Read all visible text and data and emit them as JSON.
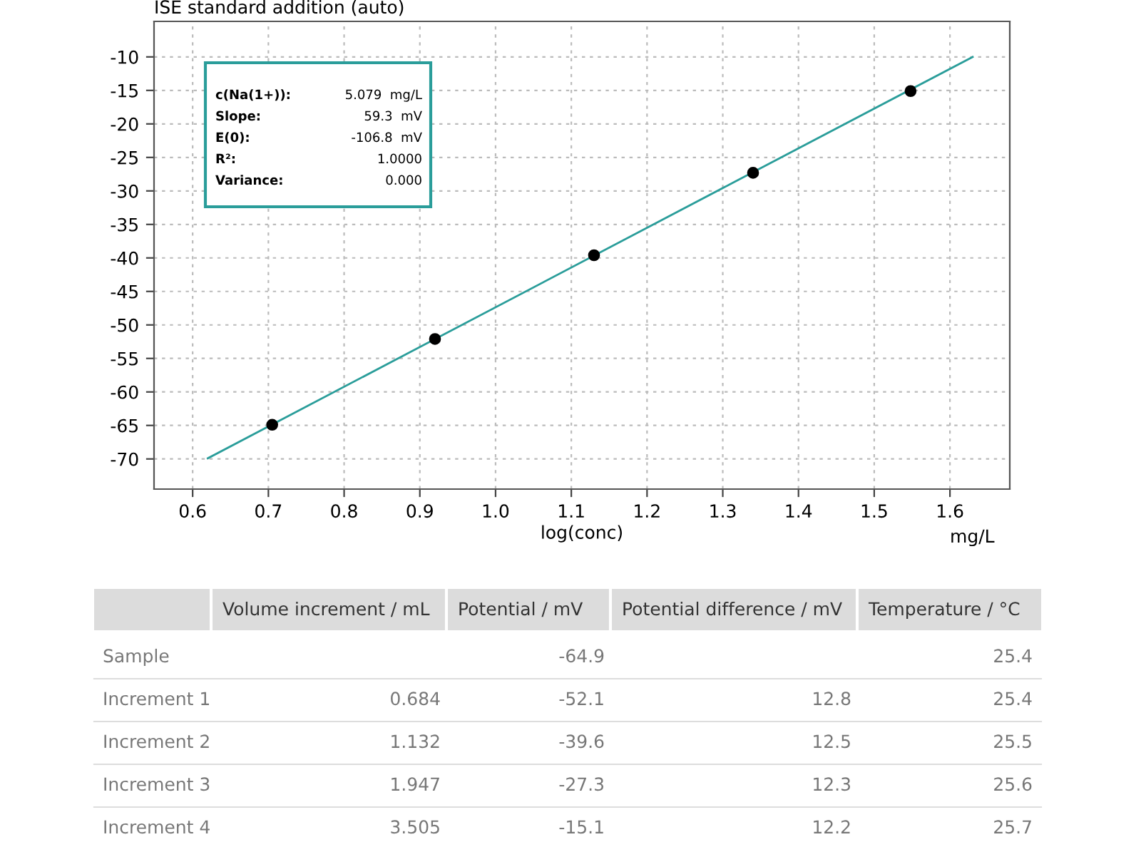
{
  "chart_data": {
    "type": "scatter",
    "title": "ISE standard addition (auto)",
    "xlabel": "log(conc)",
    "x": [
      0.705,
      0.92,
      1.13,
      1.34,
      1.548
    ],
    "series": [
      {
        "type": "line",
        "color": "#2a9d9a",
        "x": [
          0.62,
          1.63
        ],
        "values": [
          -69.9,
          -10.0
        ],
        "marker": "none",
        "line_style": "solid"
      },
      {
        "color": "#000000",
        "values": [
          -64.9,
          -52.1,
          -39.6,
          -27.3,
          -15.1
        ],
        "marker": "circle"
      }
    ],
    "xlim": [
      0.549,
      1.679
    ],
    "xticks": [
      0.6,
      0.7,
      0.8,
      0.9,
      {
        "value": 1.0,
        "label": "1.0"
      },
      1.1,
      1.2,
      1.3,
      1.4,
      1.5,
      1.6
    ],
    "ylim": [
      -74.5,
      -4.7
    ],
    "yticks": [
      -70,
      -65,
      -60,
      -55,
      -50,
      -45,
      -40,
      -35,
      -30,
      -25,
      -20,
      -15,
      -10
    ],
    "grid": true,
    "annotations": [
      "c(Na(1+)):",
      "5.079  mg/L",
      "Slope:",
      "59.3  mV",
      "E(0):",
      "-106.8  mV",
      "R²:",
      "1.0000",
      "Variance:",
      "0.000",
      "mg/L",
      null,
      "Volume increment / mL",
      "Potential / mV",
      "Potential difference / mV",
      "Temperature / °C",
      "Sample",
      null,
      "-64.9",
      null,
      "25.4",
      "Increment 1",
      "0.684",
      "-52.1",
      "12.8",
      "25.4",
      "Increment 2",
      "1.132",
      "-39.6",
      "12.5",
      "25.5",
      "Increment 3",
      "1.947",
      "-27.3",
      "12.3",
      "25.6",
      "Increment 4",
      "3.505",
      "-15.1",
      "12.2",
      "25.7"
    ]
  }
}
